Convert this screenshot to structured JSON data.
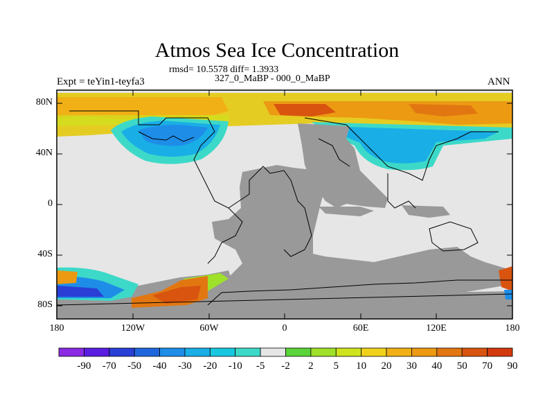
{
  "title": "Atmos Sea Ice Concentration",
  "stats": "rmsd= 10.5578 diff= 1.3933",
  "subtitle": "327_0_MaBP - 000_0_MaBP",
  "left_label": "Expt = teYin1-teyfa3",
  "right_label": "ANN",
  "map": {
    "lat_ticks": [
      "80N",
      "40N",
      "0",
      "40S",
      "80S"
    ],
    "lon_ticks": [
      "180",
      "120W",
      "60W",
      "0",
      "60E",
      "120E",
      "180"
    ]
  },
  "colorbar": {
    "labels": [
      "-90",
      "-70",
      "-50",
      "-40",
      "-30",
      "-20",
      "-10",
      "-5",
      "-2",
      "2",
      "5",
      "10",
      "20",
      "30",
      "40",
      "50",
      "70",
      "90"
    ],
    "colors": [
      "#8a2be2",
      "#5a1ee0",
      "#2a3fd6",
      "#1f66dd",
      "#1e8de8",
      "#19aee6",
      "#17c7df",
      "#3dd9c8",
      "#e6e6e6",
      "#5ad43a",
      "#9ee02a",
      "#cfe31e",
      "#f0d21b",
      "#f0b016",
      "#ec9a12",
      "#e27712",
      "#d85510",
      "#d23a0e"
    ]
  },
  "colors": {
    "land": "#999999",
    "neutral": "#e6e6e6",
    "frame": "#000000"
  }
}
